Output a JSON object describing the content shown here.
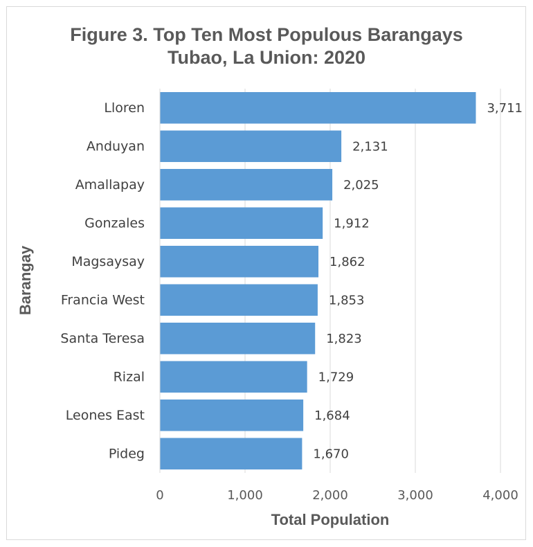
{
  "chart_data": {
    "type": "bar",
    "orientation": "horizontal",
    "title": "Figure 3. Top Ten Most Populous Barangays",
    "subtitle": "Tubao, La Union: 2020",
    "xlabel": "Total Population",
    "ylabel": "Barangay",
    "categories": [
      "Lloren",
      "Anduyan",
      "Amallapay",
      "Gonzales",
      "Magsaysay",
      "Francia West",
      "Santa Teresa",
      "Rizal",
      "Leones East",
      "Pideg"
    ],
    "values": [
      3711,
      2131,
      2025,
      1912,
      1862,
      1853,
      1823,
      1729,
      1684,
      1670
    ],
    "data_labels": [
      "3,711",
      "2,131",
      "2,025",
      "1,912",
      "1,862",
      "1,853",
      "1,823",
      "1,729",
      "1,684",
      "1,670"
    ],
    "xlim": [
      0,
      4000
    ],
    "xticks": [
      0,
      1000,
      2000,
      3000,
      4000
    ],
    "xtick_labels": [
      "0",
      "1,000",
      "2,000",
      "3,000",
      "4,000"
    ],
    "grid": "vertical",
    "legend": "none",
    "bar_color": "#5b9bd5",
    "grid_color": "#d9d9d9",
    "text_color": "#595959"
  }
}
